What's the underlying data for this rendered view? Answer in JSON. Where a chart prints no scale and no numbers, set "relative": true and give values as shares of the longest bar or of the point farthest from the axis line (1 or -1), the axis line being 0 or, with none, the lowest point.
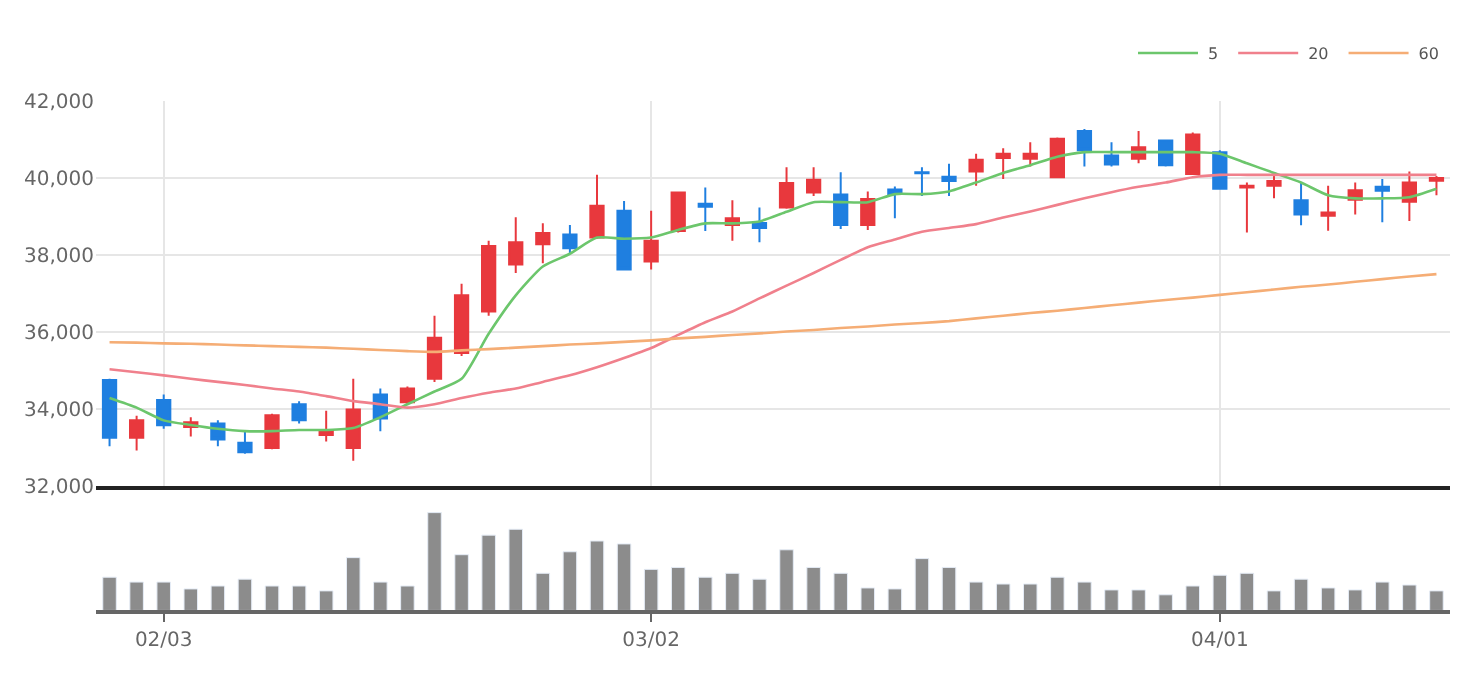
{
  "chart_data": [
    {
      "type": "candlestick",
      "categories": [
        null,
        null,
        null,
        null,
        null,
        null,
        null,
        null,
        null,
        null,
        null,
        null,
        null,
        null,
        null,
        null,
        null,
        null,
        null,
        null,
        null,
        null,
        null,
        null,
        null,
        null,
        null,
        null,
        null,
        null,
        null,
        null,
        null,
        null,
        null,
        null,
        null,
        null,
        null,
        null,
        null,
        null,
        null,
        null,
        null,
        null,
        null,
        null,
        null,
        null
      ],
      "ohlc": [
        [
          34750,
          34780,
          33030,
          33250
        ],
        [
          33250,
          33820,
          32920,
          33700
        ],
        [
          34230,
          34370,
          33480,
          33570
        ],
        [
          33530,
          33780,
          33280,
          33650
        ],
        [
          33620,
          33700,
          33030,
          33200
        ],
        [
          33120,
          33450,
          32830,
          32870
        ],
        [
          32980,
          33870,
          32950,
          33830
        ],
        [
          34120,
          34200,
          33620,
          33700
        ],
        [
          33320,
          33950,
          33150,
          33450
        ],
        [
          32980,
          34780,
          32650,
          33980
        ],
        [
          34370,
          34530,
          33420,
          33750
        ],
        [
          34170,
          34580,
          34120,
          34530
        ],
        [
          34780,
          36420,
          34700,
          35850
        ],
        [
          35450,
          37250,
          35370,
          36950
        ],
        [
          36530,
          38370,
          36420,
          38230
        ],
        [
          37750,
          38980,
          37530,
          38330
        ],
        [
          38280,
          38820,
          37780,
          38570
        ],
        [
          38530,
          38780,
          38030,
          38170
        ],
        [
          38450,
          40080,
          38420,
          39280
        ],
        [
          39150,
          39400,
          37620,
          37620
        ],
        [
          37830,
          39150,
          37620,
          38370
        ],
        [
          38620,
          39620,
          38580,
          39620
        ],
        [
          39330,
          39750,
          38620,
          39250
        ],
        [
          38780,
          39420,
          38370,
          38950
        ],
        [
          38830,
          39230,
          38330,
          38700
        ],
        [
          39230,
          40280,
          39200,
          39870
        ],
        [
          39620,
          40280,
          39530,
          39950
        ],
        [
          39570,
          40150,
          38670,
          38780
        ],
        [
          38780,
          39650,
          38650,
          39450
        ],
        [
          39700,
          39780,
          38950,
          39580
        ],
        [
          40150,
          40280,
          39530,
          40120
        ],
        [
          40030,
          40370,
          39530,
          39920
        ],
        [
          40170,
          40630,
          39800,
          40470
        ],
        [
          40520,
          40770,
          39970,
          40630
        ],
        [
          40500,
          40930,
          40300,
          40630
        ],
        [
          40020,
          41050,
          40000,
          41020
        ],
        [
          41220,
          41270,
          40300,
          40720
        ],
        [
          40580,
          40930,
          40300,
          40350
        ],
        [
          40500,
          41220,
          40380,
          40800
        ],
        [
          40970,
          41000,
          40300,
          40330
        ],
        [
          40100,
          41180,
          40100,
          41130
        ],
        [
          40670,
          40720,
          39720,
          39720
        ],
        [
          39750,
          39880,
          38580,
          39800
        ],
        [
          39800,
          40100,
          39470,
          39920
        ],
        [
          39420,
          39880,
          38770,
          39050
        ],
        [
          39020,
          39800,
          38630,
          39100
        ],
        [
          39430,
          39880,
          39050,
          39680
        ],
        [
          39770,
          39970,
          38850,
          39670
        ],
        [
          39380,
          40170,
          38880,
          39880
        ],
        [
          39930,
          40050,
          39550,
          40000
        ]
      ],
      "colors": [
        "#1f7fe0",
        "#e8383d",
        "#1f7fe0",
        "#e8383d",
        "#1f7fe0",
        "#1f7fe0",
        "#e8383d",
        "#1f7fe0",
        "#e8383d",
        "#e8383d",
        "#1f7fe0",
        "#e8383d",
        "#e8383d",
        "#e8383d",
        "#e8383d",
        "#e8383d",
        "#e8383d",
        "#1f7fe0",
        "#e8383d",
        "#1f7fe0",
        "#e8383d",
        "#e8383d",
        "#1f7fe0",
        "#e8383d",
        "#1f7fe0",
        "#e8383d",
        "#e8383d",
        "#1f7fe0",
        "#e8383d",
        "#1f7fe0",
        "#1f7fe0",
        "#1f7fe0",
        "#e8383d",
        "#e8383d",
        "#e8383d",
        "#e8383d",
        "#1f7fe0",
        "#1f7fe0",
        "#e8383d",
        "#1f7fe0",
        "#e8383d",
        "#1f7fe0",
        "#e8383d",
        "#e8383d",
        "#1f7fe0",
        "#e8383d",
        "#e8383d",
        "#1f7fe0",
        "#e8383d",
        "#e8383d"
      ],
      "series": [
        {
          "type": "line",
          "name": "5",
          "color": "#6cc66c",
          "values": [
            34280,
            34030,
            33700,
            33580,
            33480,
            33420,
            33420,
            33450,
            33450,
            33500,
            33780,
            34120,
            34450,
            34780,
            35950,
            36950,
            37700,
            38030,
            38450,
            38420,
            38450,
            38650,
            38820,
            38820,
            38870,
            39120,
            39370,
            39370,
            39370,
            39580,
            39580,
            39650,
            39880,
            40130,
            40330,
            40550,
            40670,
            40670,
            40670,
            40670,
            40670,
            40630,
            40380,
            40130,
            39880,
            39550,
            39470,
            39470,
            39500,
            39720
          ]
        },
        {
          "type": "line",
          "name": "20",
          "color": "#f0808c",
          "values": [
            35030,
            34950,
            34870,
            34780,
            34700,
            34620,
            34530,
            34450,
            34330,
            34200,
            34120,
            34030,
            34120,
            34280,
            34420,
            34530,
            34700,
            34870,
            35080,
            35320,
            35580,
            35920,
            36250,
            36530,
            36870,
            37200,
            37530,
            37870,
            38200,
            38400,
            38600,
            38700,
            38800,
            38970,
            39130,
            39300,
            39470,
            39630,
            39770,
            39880,
            40020,
            40080,
            40080,
            40080,
            40080,
            40080,
            40080,
            40080,
            40080,
            40080
          ]
        },
        {
          "type": "line",
          "name": "60",
          "color": "#f5ad75",
          "values": [
            35730,
            35720,
            35700,
            35690,
            35670,
            35650,
            35630,
            35610,
            35590,
            35560,
            35530,
            35500,
            35480,
            35520,
            35550,
            35590,
            35630,
            35670,
            35700,
            35740,
            35780,
            35830,
            35870,
            35920,
            35960,
            36010,
            36050,
            36100,
            36140,
            36190,
            36230,
            36280,
            36350,
            36420,
            36490,
            36550,
            36620,
            36690,
            36760,
            36830,
            36890,
            36960,
            37030,
            37100,
            37170,
            37230,
            37300,
            37370,
            37440,
            37500
          ]
        }
      ],
      "ylim": [
        32000,
        42000
      ],
      "yticks": [
        {
          "value": 32000,
          "label": "32,000"
        },
        {
          "value": 34000,
          "label": "34,000"
        },
        {
          "value": 36000,
          "label": "36,000"
        },
        {
          "value": 38000,
          "label": "38,000"
        },
        {
          "value": 40000,
          "label": "40,000"
        },
        {
          "value": 42000,
          "label": "42,000"
        }
      ],
      "grid": true,
      "legend": "top right",
      "tick_labels": "y"
    },
    {
      "type": "bar",
      "categories": [
        null,
        null,
        "02/03",
        null,
        null,
        null,
        null,
        null,
        null,
        null,
        null,
        null,
        null,
        null,
        null,
        null,
        null,
        null,
        null,
        null,
        "03/02",
        null,
        null,
        null,
        null,
        null,
        null,
        null,
        null,
        null,
        null,
        null,
        null,
        null,
        null,
        null,
        null,
        null,
        null,
        null,
        null,
        "04/01",
        null,
        null,
        null,
        null,
        null,
        null,
        null,
        null
      ],
      "values": [
        0.34,
        0.29,
        0.29,
        0.22,
        0.25,
        0.32,
        0.25,
        0.25,
        0.2,
        0.54,
        0.29,
        0.25,
        1,
        0.57,
        0.77,
        0.83,
        0.38,
        0.6,
        0.71,
        0.68,
        0.42,
        0.44,
        0.34,
        0.38,
        0.32,
        0.62,
        0.44,
        0.38,
        0.23,
        0.22,
        0.53,
        0.44,
        0.29,
        0.27,
        0.27,
        0.34,
        0.29,
        0.21,
        0.21,
        0.16,
        0.25,
        0.36,
        0.38,
        0.2,
        0.32,
        0.23,
        0.21,
        0.29,
        0.26,
        0.2
      ],
      "color": "#8c8c8c",
      "relative": true,
      "tick_labels": "x",
      "grid": false
    }
  ]
}
